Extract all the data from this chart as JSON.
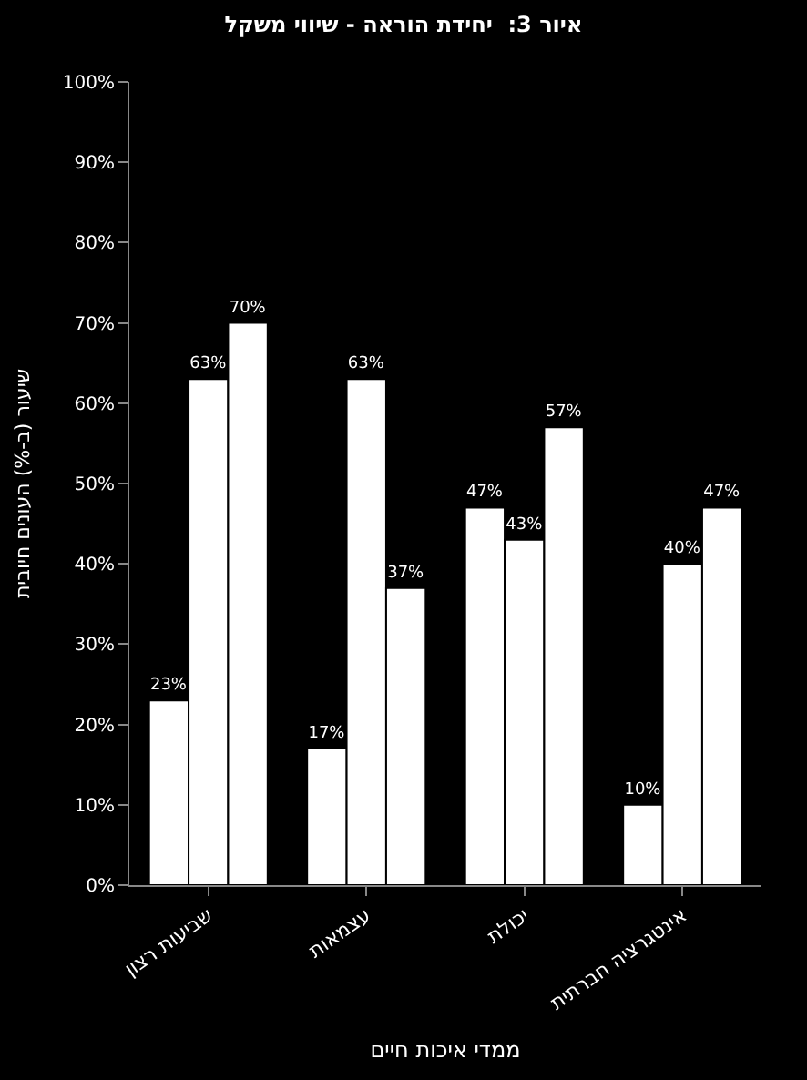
{
  "chart_data": {
    "type": "bar",
    "title": "איור 3:  יחידת הוראה - שיווי משקל",
    "xlabel": "ממדי איכות חיים",
    "ylabel": "שיעור (ב-%) העונים חיובית",
    "categories": [
      "שביעות רצון",
      "עצמאות",
      "יכולת",
      "אינטגרציה חברתית"
    ],
    "series": [
      {
        "color": "#ffffff",
        "values": [
          23,
          17,
          47,
          10
        ],
        "value_labels": [
          "23%",
          "17%",
          "47%",
          "10%"
        ]
      },
      {
        "color": "#ffffff",
        "values": [
          63,
          63,
          43,
          40
        ],
        "value_labels": [
          "63%",
          "63%",
          "43%",
          "40%"
        ]
      },
      {
        "color": "#ffffff",
        "values": [
          70,
          37,
          57,
          47
        ],
        "value_labels": [
          "70%",
          "37%",
          "57%",
          "47%"
        ]
      }
    ],
    "ylim": [
      0,
      100
    ],
    "yticks": [
      {
        "value": 0,
        "label": "0%"
      },
      {
        "value": 10,
        "label": "10%"
      },
      {
        "value": 20,
        "label": "20%"
      },
      {
        "value": 30,
        "label": "30%"
      },
      {
        "value": 40,
        "label": "40%"
      },
      {
        "value": 50,
        "label": "50%"
      },
      {
        "value": 60,
        "label": "60%"
      },
      {
        "value": 70,
        "label": "70%"
      },
      {
        "value": 80,
        "label": "80%"
      },
      {
        "value": 90,
        "label": "90%"
      },
      {
        "value": 100,
        "label": "100%"
      }
    ],
    "grid": false
  }
}
